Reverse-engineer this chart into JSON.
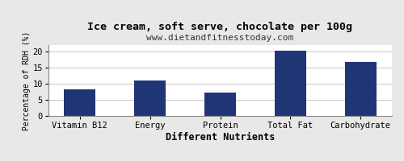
{
  "title": "Ice cream, soft serve, chocolate per 100g",
  "subtitle": "www.dietandfitnesstoday.com",
  "xlabel": "Different Nutrients",
  "ylabel": "Percentage of RDH (%)",
  "categories": [
    "Vitamin B12",
    "Energy",
    "Protein",
    "Total Fat",
    "Carbohydrate"
  ],
  "values": [
    8.2,
    11.0,
    7.2,
    20.2,
    16.8
  ],
  "bar_color": "#1f3575",
  "ylim": [
    0,
    22
  ],
  "yticks": [
    0,
    5,
    10,
    15,
    20
  ],
  "background_color": "#e8e8e8",
  "plot_bg_color": "#ffffff",
  "title_fontsize": 9.5,
  "subtitle_fontsize": 8,
  "xlabel_fontsize": 8.5,
  "ylabel_fontsize": 7,
  "tick_fontsize": 7.5
}
